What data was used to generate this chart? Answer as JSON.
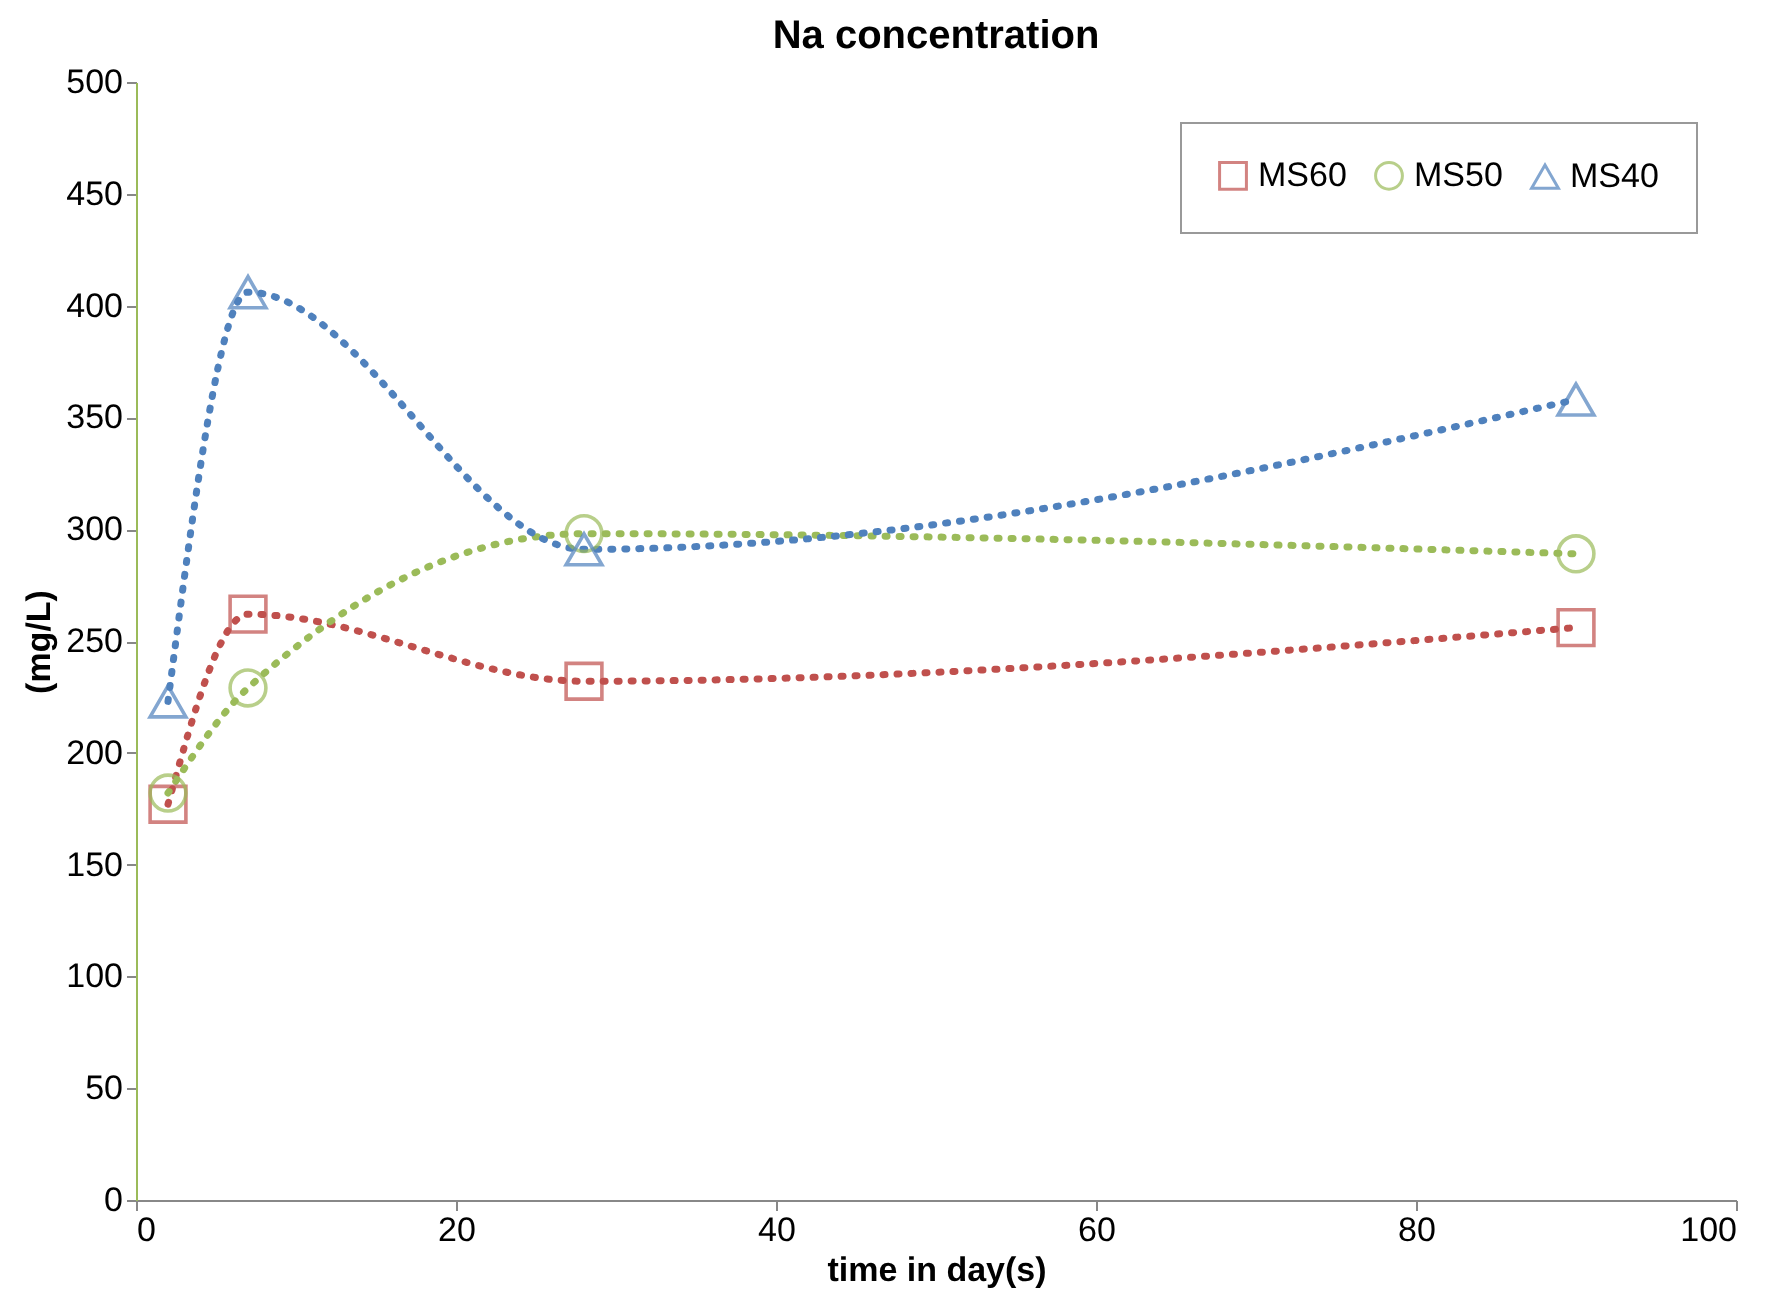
{
  "chart_data": {
    "type": "line",
    "title": "Na concentration",
    "xlabel": "time in day(s)",
    "ylabel": "(mg/L)",
    "x": [
      2,
      7,
      28,
      90
    ],
    "series": [
      {
        "name": "MS60",
        "color": "#c0504d",
        "marker": "square",
        "values": [
          177,
          262,
          232,
          256
        ]
      },
      {
        "name": "MS50",
        "color": "#9bbb59",
        "marker": "circle",
        "values": [
          182,
          229,
          298,
          289
        ]
      },
      {
        "name": "MS40",
        "color": "#4f81bd",
        "marker": "triangle",
        "values": [
          223,
          406,
          291,
          358
        ]
      }
    ],
    "xlim": [
      0,
      100
    ],
    "xticks": [
      0,
      20,
      40,
      60,
      80,
      100
    ],
    "ylim": [
      0,
      500
    ],
    "yticks": [
      0,
      50,
      100,
      150,
      200,
      250,
      300,
      350,
      400,
      450,
      500
    ],
    "grid": false,
    "legend": "top right",
    "line_style": "dotted"
  }
}
